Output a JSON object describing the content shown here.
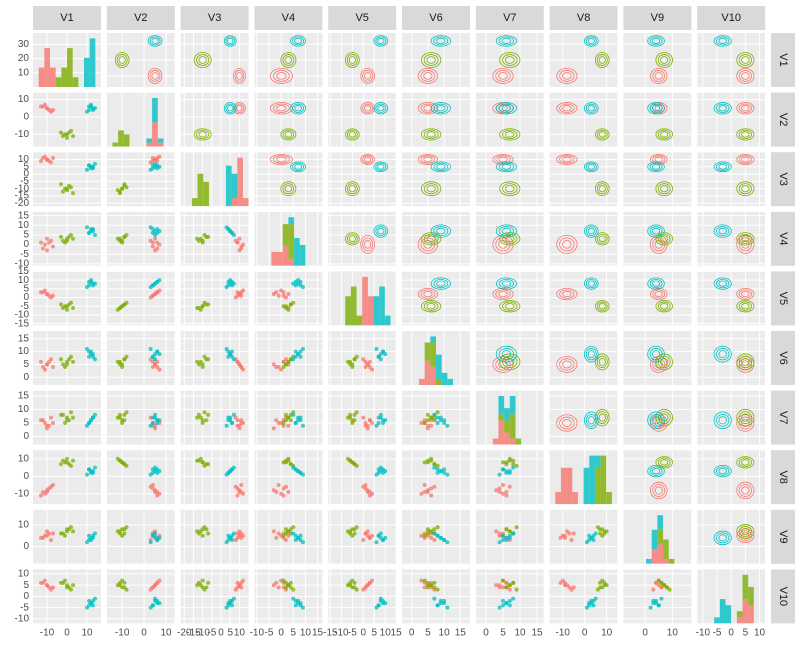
{
  "chart_data": {
    "type": "pairs",
    "variables": [
      {
        "name": "V1",
        "lim": [
          -17,
          17
        ],
        "ticks": [
          -10,
          0,
          10
        ]
      },
      {
        "name": "V2",
        "lim": [
          -17,
          14
        ],
        "ticks": [
          -10,
          0,
          10
        ]
      },
      {
        "name": "V3",
        "lim": [
          -22,
          15
        ],
        "ticks": [
          -20,
          -15,
          -10,
          -5,
          0,
          5,
          10
        ]
      },
      {
        "name": "V4",
        "lim": [
          -11,
          17
        ],
        "ticks": [
          -10,
          -5,
          0,
          5,
          10,
          15
        ]
      },
      {
        "name": "V5",
        "lim": [
          -16,
          15
        ],
        "ticks": [
          -15,
          -10,
          -5,
          0,
          5,
          10,
          15
        ]
      },
      {
        "name": "V6",
        "lim": [
          -3,
          18
        ],
        "ticks": [
          0,
          5,
          10,
          15
        ]
      },
      {
        "name": "V7",
        "lim": [
          -3,
          17
        ],
        "ticks": [
          0,
          5,
          10,
          15
        ]
      },
      {
        "name": "V8",
        "lim": [
          -16,
          15
        ],
        "ticks": [
          -10,
          0,
          10
        ]
      },
      {
        "name": "V9",
        "lim": [
          -8,
          17
        ],
        "ticks": [
          0,
          10
        ]
      },
      {
        "name": "V10",
        "lim": [
          -12,
          12
        ],
        "ticks": [
          -10,
          -5,
          0,
          5,
          10
        ]
      }
    ],
    "diag_ylim": [
      0,
      38
    ],
    "diag_yticks": [
      10,
      20,
      30
    ],
    "colors": [
      "#f8766d",
      "#7cae00",
      "#00bfc4",
      "#c77cff"
    ],
    "observations": [
      {
        "group": 0,
        "values": [
          -12,
          6,
          11,
          -2,
          3,
          4,
          6,
          -9,
          4,
          6
        ]
      },
      {
        "group": 0,
        "values": [
          -9,
          4,
          9,
          1,
          1,
          6,
          4,
          -7,
          6,
          4
        ]
      },
      {
        "group": 0,
        "values": [
          -11,
          7,
          12,
          0,
          4,
          3,
          5,
          -10,
          5,
          7
        ]
      },
      {
        "group": 0,
        "values": [
          -8,
          3,
          8,
          2,
          0,
          7,
          7,
          -6,
          3,
          3
        ]
      },
      {
        "group": 0,
        "values": [
          -10,
          5,
          10,
          -3,
          2,
          5,
          3,
          -8,
          7,
          5
        ]
      },
      {
        "group": 0,
        "values": [
          -13,
          6,
          9,
          1,
          3,
          6,
          6,
          -11,
          4,
          6
        ]
      },
      {
        "group": 0,
        "values": [
          -7,
          4,
          11,
          -1,
          1,
          4,
          5,
          -5,
          6,
          4
        ]
      },
      {
        "group": 0,
        "values": [
          -10,
          5,
          10,
          3,
          2,
          5,
          4,
          -9,
          5,
          5
        ]
      },
      {
        "group": 1,
        "values": [
          -2,
          -11,
          -12,
          2,
          -6,
          5,
          8,
          9,
          6,
          6
        ]
      },
      {
        "group": 1,
        "values": [
          1,
          -9,
          -8,
          4,
          -4,
          7,
          6,
          7,
          8,
          4
        ]
      },
      {
        "group": 1,
        "values": [
          0,
          -12,
          -11,
          3,
          -7,
          6,
          7,
          10,
          7,
          5
        ]
      },
      {
        "group": 1,
        "values": [
          2,
          -8,
          -9,
          5,
          -3,
          8,
          9,
          6,
          9,
          3
        ]
      },
      {
        "group": 1,
        "values": [
          -1,
          -10,
          -10,
          1,
          -5,
          4,
          5,
          8,
          5,
          7
        ]
      },
      {
        "group": 1,
        "values": [
          3,
          -11,
          -13,
          3,
          -6,
          6,
          7,
          9,
          7,
          5
        ]
      },
      {
        "group": 1,
        "values": [
          -3,
          -9,
          -7,
          4,
          -4,
          7,
          8,
          7,
          6,
          6
        ]
      },
      {
        "group": 1,
        "values": [
          0,
          -10,
          -10,
          2,
          -5,
          5,
          6,
          8,
          8,
          4
        ]
      },
      {
        "group": 2,
        "values": [
          11,
          6,
          6,
          6,
          9,
          10,
          5,
          4,
          3,
          -2
        ]
      },
      {
        "group": 2,
        "values": [
          13,
          4,
          4,
          8,
          7,
          8,
          7,
          2,
          5,
          -4
        ]
      },
      {
        "group": 2,
        "values": [
          12,
          7,
          5,
          7,
          10,
          9,
          6,
          3,
          4,
          -3
        ]
      },
      {
        "group": 2,
        "values": [
          10,
          3,
          3,
          9,
          6,
          11,
          4,
          1,
          2,
          -5
        ]
      },
      {
        "group": 2,
        "values": [
          14,
          5,
          7,
          5,
          8,
          7,
          8,
          5,
          6,
          -1
        ]
      },
      {
        "group": 2,
        "values": [
          12,
          6,
          4,
          8,
          9,
          10,
          6,
          2,
          3,
          -3
        ]
      },
      {
        "group": 2,
        "values": [
          11,
          4,
          6,
          6,
          7,
          8,
          5,
          4,
          5,
          -4
        ]
      },
      {
        "group": 2,
        "values": [
          13,
          5,
          5,
          7,
          8,
          9,
          7,
          3,
          4,
          -2
        ]
      }
    ]
  }
}
